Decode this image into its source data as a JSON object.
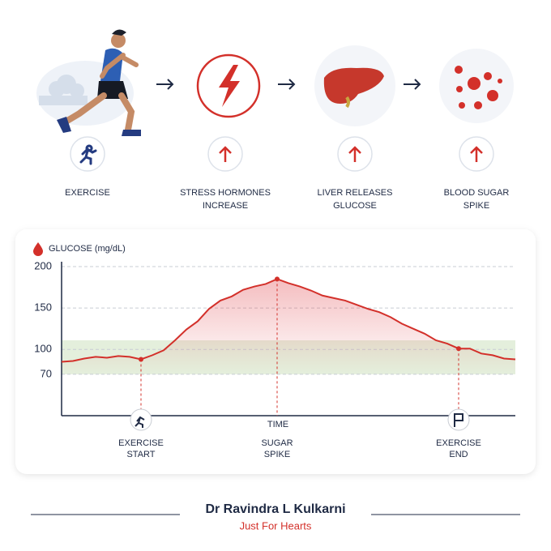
{
  "steps": [
    {
      "label_lines": [
        "EXERCISE"
      ]
    },
    {
      "label_lines": [
        "STRESS HORMONES",
        "INCREASE"
      ]
    },
    {
      "label_lines": [
        "LIVER RELEASES",
        "GLUCOSE"
      ]
    },
    {
      "label_lines": [
        "BLOOD SUGAR",
        "SPIKE"
      ]
    }
  ],
  "chart_data": {
    "type": "line",
    "y_label": "GLUCOSE (mg/dL)",
    "x_label": "TIME",
    "series": [
      {
        "name": "Glucose",
        "color": "#d3302a",
        "values": [
          85,
          86,
          89,
          91,
          90,
          92,
          91,
          88,
          93,
          99,
          111,
          124,
          134,
          149,
          159,
          164,
          172,
          176,
          179,
          185,
          180,
          176,
          171,
          165,
          162,
          159,
          154,
          149,
          145,
          139,
          131,
          125,
          119,
          111,
          107,
          101,
          101,
          95,
          93,
          89,
          88
        ]
      }
    ],
    "ylim": [
      20,
      200
    ],
    "yticks": [
      200,
      150,
      100,
      70
    ],
    "grid": true,
    "band": [
      70,
      111
    ],
    "band_color": "#e4efdc",
    "annotations": [
      {
        "x": 7,
        "label_lines": [
          "EXERCISE",
          "START"
        ]
      },
      {
        "x": 19,
        "label_lines": [
          "SUGAR",
          "SPIKE"
        ]
      },
      {
        "x": 35,
        "label_lines": [
          "EXERCISE",
          "END"
        ]
      }
    ]
  },
  "footer": {
    "name": "Dr Ravindra L Kulkarni",
    "tagline": "Just For Hearts"
  }
}
